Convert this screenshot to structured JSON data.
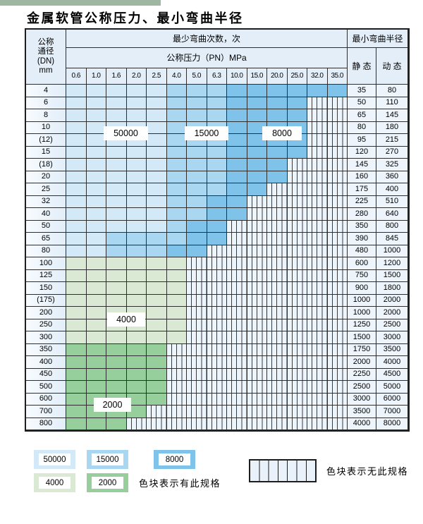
{
  "title": "金属软管公称压力、最小弯曲半径",
  "table": {
    "corner_header": [
      "公称",
      "通径",
      "(DN)",
      "mm"
    ],
    "cycles_header": "最少弯曲次数，次",
    "radius_header": "最小弯曲半径",
    "pressure_header": "公称压力（PN）MPa",
    "pressure_columns": [
      "0.6",
      "1.0",
      "1.6",
      "2.0",
      "2.5",
      "4.0",
      "5.0",
      "6.3",
      "10.0",
      "15.0",
      "20.0",
      "25.0",
      "32.0",
      "35.0"
    ],
    "static_header": "静 态",
    "dynamic_header": "动 态",
    "rows": [
      {
        "dn": "4",
        "segments": [
          [
            "50000",
            5
          ],
          [
            "15000",
            3
          ],
          [
            "8000",
            6
          ]
        ],
        "static": "35",
        "dynamic": "80"
      },
      {
        "dn": "6",
        "segments": [
          [
            "50000",
            5
          ],
          [
            "15000",
            3
          ],
          [
            "8000",
            4
          ],
          [
            "none",
            2
          ]
        ],
        "static": "50",
        "dynamic": "110"
      },
      {
        "dn": "8",
        "segments": [
          [
            "50000",
            5
          ],
          [
            "15000",
            3
          ],
          [
            "8000",
            4
          ],
          [
            "none",
            2
          ]
        ],
        "static": "65",
        "dynamic": "145"
      },
      {
        "dn": "10",
        "segments": [
          [
            "50000",
            5
          ],
          [
            "15000",
            3
          ],
          [
            "8000",
            4
          ],
          [
            "none",
            2
          ]
        ],
        "static": "80",
        "dynamic": "180"
      },
      {
        "dn": "(12)",
        "segments": [
          [
            "50000",
            5
          ],
          [
            "15000",
            3
          ],
          [
            "8000",
            4
          ],
          [
            "none",
            2
          ]
        ],
        "static": "95",
        "dynamic": "215"
      },
      {
        "dn": "15",
        "segments": [
          [
            "50000",
            5
          ],
          [
            "15000",
            3
          ],
          [
            "8000",
            4
          ],
          [
            "none",
            2
          ]
        ],
        "static": "120",
        "dynamic": "270"
      },
      {
        "dn": "(18)",
        "segments": [
          [
            "50000",
            5
          ],
          [
            "15000",
            3
          ],
          [
            "8000",
            3
          ],
          [
            "none",
            3
          ]
        ],
        "static": "145",
        "dynamic": "325"
      },
      {
        "dn": "20",
        "segments": [
          [
            "50000",
            5
          ],
          [
            "15000",
            3
          ],
          [
            "8000",
            3
          ],
          [
            "none",
            3
          ]
        ],
        "static": "160",
        "dynamic": "360"
      },
      {
        "dn": "25",
        "segments": [
          [
            "50000",
            5
          ],
          [
            "15000",
            3
          ],
          [
            "8000",
            2
          ],
          [
            "none",
            4
          ]
        ],
        "static": "175",
        "dynamic": "400"
      },
      {
        "dn": "32",
        "segments": [
          [
            "50000",
            5
          ],
          [
            "15000",
            2
          ],
          [
            "8000",
            2
          ],
          [
            "none",
            5
          ]
        ],
        "static": "225",
        "dynamic": "510"
      },
      {
        "dn": "40",
        "segments": [
          [
            "50000",
            5
          ],
          [
            "15000",
            2
          ],
          [
            "8000",
            2
          ],
          [
            "none",
            5
          ]
        ],
        "static": "280",
        "dynamic": "640"
      },
      {
        "dn": "50",
        "segments": [
          [
            "50000",
            5
          ],
          [
            "15000",
            1
          ],
          [
            "8000",
            2
          ],
          [
            "none",
            6
          ]
        ],
        "static": "350",
        "dynamic": "800"
      },
      {
        "dn": "65",
        "segments": [
          [
            "50000",
            2
          ],
          [
            "15000",
            4
          ],
          [
            "8000",
            2
          ],
          [
            "none",
            6
          ]
        ],
        "static": "390",
        "dynamic": "845"
      },
      {
        "dn": "80",
        "segments": [
          [
            "50000",
            2
          ],
          [
            "15000",
            3
          ],
          [
            "8000",
            2
          ],
          [
            "none",
            7
          ]
        ],
        "static": "480",
        "dynamic": "1000"
      },
      {
        "dn": "100",
        "segments": [
          [
            "4000",
            6
          ],
          [
            "none",
            8
          ]
        ],
        "static": "600",
        "dynamic": "1200"
      },
      {
        "dn": "125",
        "segments": [
          [
            "4000",
            6
          ],
          [
            "none",
            8
          ]
        ],
        "static": "750",
        "dynamic": "1500"
      },
      {
        "dn": "150",
        "segments": [
          [
            "4000",
            6
          ],
          [
            "none",
            8
          ]
        ],
        "static": "900",
        "dynamic": "1800"
      },
      {
        "dn": "(175)",
        "segments": [
          [
            "4000",
            6
          ],
          [
            "none",
            8
          ]
        ],
        "static": "1000",
        "dynamic": "2000"
      },
      {
        "dn": "200",
        "segments": [
          [
            "4000",
            6
          ],
          [
            "none",
            8
          ]
        ],
        "static": "1000",
        "dynamic": "2000"
      },
      {
        "dn": "250",
        "segments": [
          [
            "4000",
            6
          ],
          [
            "none",
            8
          ]
        ],
        "static": "1250",
        "dynamic": "2500"
      },
      {
        "dn": "300",
        "segments": [
          [
            "4000",
            6
          ],
          [
            "none",
            8
          ]
        ],
        "static": "1500",
        "dynamic": "3000"
      },
      {
        "dn": "350",
        "segments": [
          [
            "2000",
            5
          ],
          [
            "none",
            9
          ]
        ],
        "static": "1750",
        "dynamic": "3500"
      },
      {
        "dn": "400",
        "segments": [
          [
            "2000",
            5
          ],
          [
            "none",
            9
          ]
        ],
        "static": "2000",
        "dynamic": "4000"
      },
      {
        "dn": "450",
        "segments": [
          [
            "2000",
            5
          ],
          [
            "none",
            9
          ]
        ],
        "static": "2250",
        "dynamic": "4500"
      },
      {
        "dn": "500",
        "segments": [
          [
            "2000",
            5
          ],
          [
            "none",
            9
          ]
        ],
        "static": "2500",
        "dynamic": "5000"
      },
      {
        "dn": "600",
        "segments": [
          [
            "2000",
            5
          ],
          [
            "none",
            9
          ]
        ],
        "static": "3000",
        "dynamic": "6000"
      },
      {
        "dn": "700",
        "segments": [
          [
            "2000",
            4
          ],
          [
            "none",
            10
          ]
        ],
        "static": "3500",
        "dynamic": "7000"
      },
      {
        "dn": "800",
        "segments": [
          [
            "2000",
            3
          ],
          [
            "none",
            11
          ]
        ],
        "static": "4000",
        "dynamic": "8000"
      }
    ],
    "overlay_labels": [
      "50000",
      "15000",
      "8000",
      "4000",
      "2000"
    ]
  },
  "legend": {
    "items": [
      {
        "label": "50000",
        "color": "#d3e9f8"
      },
      {
        "label": "15000",
        "color": "#a9d6f1"
      },
      {
        "label": "8000",
        "color": "#7fc3ea"
      },
      {
        "label": "4000",
        "color": "#d9e9d4"
      },
      {
        "label": "2000",
        "color": "#96ce9c"
      }
    ],
    "has_spec_text": "色块表示有此规格",
    "no_spec_text": "色块表示无此规格"
  },
  "colors": {
    "band_50000": "#d3e9f8",
    "band_15000": "#a9d6f1",
    "band_8000": "#7fc3ea",
    "band_4000": "#d9e9d4",
    "band_2000": "#96ce9c",
    "hatch_bg": "#ecf4fc",
    "grid_line": "#2e2e2e",
    "header_bg": "#e4eef8",
    "accent_bar": "#9fb7a2"
  }
}
